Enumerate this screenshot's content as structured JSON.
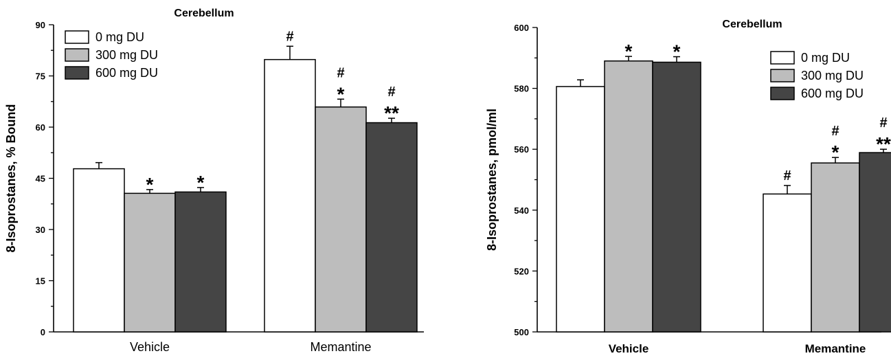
{
  "chart_data": [
    {
      "type": "bar",
      "title": "Cerebellum",
      "xlabel": "",
      "ylabel": "8-Isoprostanes, % Bound",
      "ylim": [
        0,
        90
      ],
      "yticks": [
        0,
        15,
        30,
        45,
        60,
        75,
        90
      ],
      "categories": [
        "Vehicle",
        "Memantine"
      ],
      "series": [
        {
          "name": "0 mg DU",
          "color": "#ffffff",
          "values": [
            47.8,
            79.8
          ],
          "errors": [
            1.8,
            3.9
          ]
        },
        {
          "name": "300 mg DU",
          "color": "#bdbdbd",
          "values": [
            40.6,
            65.9
          ],
          "errors": [
            1.1,
            2.3
          ]
        },
        {
          "name": "600 mg DU",
          "color": "#454545",
          "values": [
            41.0,
            61.3
          ],
          "errors": [
            1.3,
            1.3
          ]
        }
      ],
      "annotations": [
        [
          "",
          "#"
        ],
        [
          "*",
          "#\n*"
        ],
        [
          "*",
          "#\n**"
        ]
      ],
      "legend": "top-left",
      "grid": false
    },
    {
      "type": "bar",
      "title": "Cerebellum",
      "xlabel": "",
      "ylabel": "8-Isoprostanes, pmol/ml",
      "ylim": [
        500,
        600
      ],
      "yticks": [
        500,
        520,
        540,
        560,
        580,
        600
      ],
      "categories": [
        "Vehicle",
        "Memantine"
      ],
      "series": [
        {
          "name": "0 mg DU",
          "color": "#ffffff",
          "values": [
            580.6,
            545.3
          ],
          "errors": [
            2.2,
            2.8
          ]
        },
        {
          "name": "300 mg DU",
          "color": "#bdbdbd",
          "values": [
            589.0,
            555.5
          ],
          "errors": [
            1.5,
            1.8
          ]
        },
        {
          "name": "600 mg DU",
          "color": "#454545",
          "values": [
            588.6,
            558.9
          ],
          "errors": [
            1.8,
            1.1
          ]
        }
      ],
      "annotations": [
        [
          "",
          "#"
        ],
        [
          "*",
          "#\n*"
        ],
        [
          "*",
          "#\n**"
        ]
      ],
      "legend": "top-right",
      "grid": false
    }
  ]
}
